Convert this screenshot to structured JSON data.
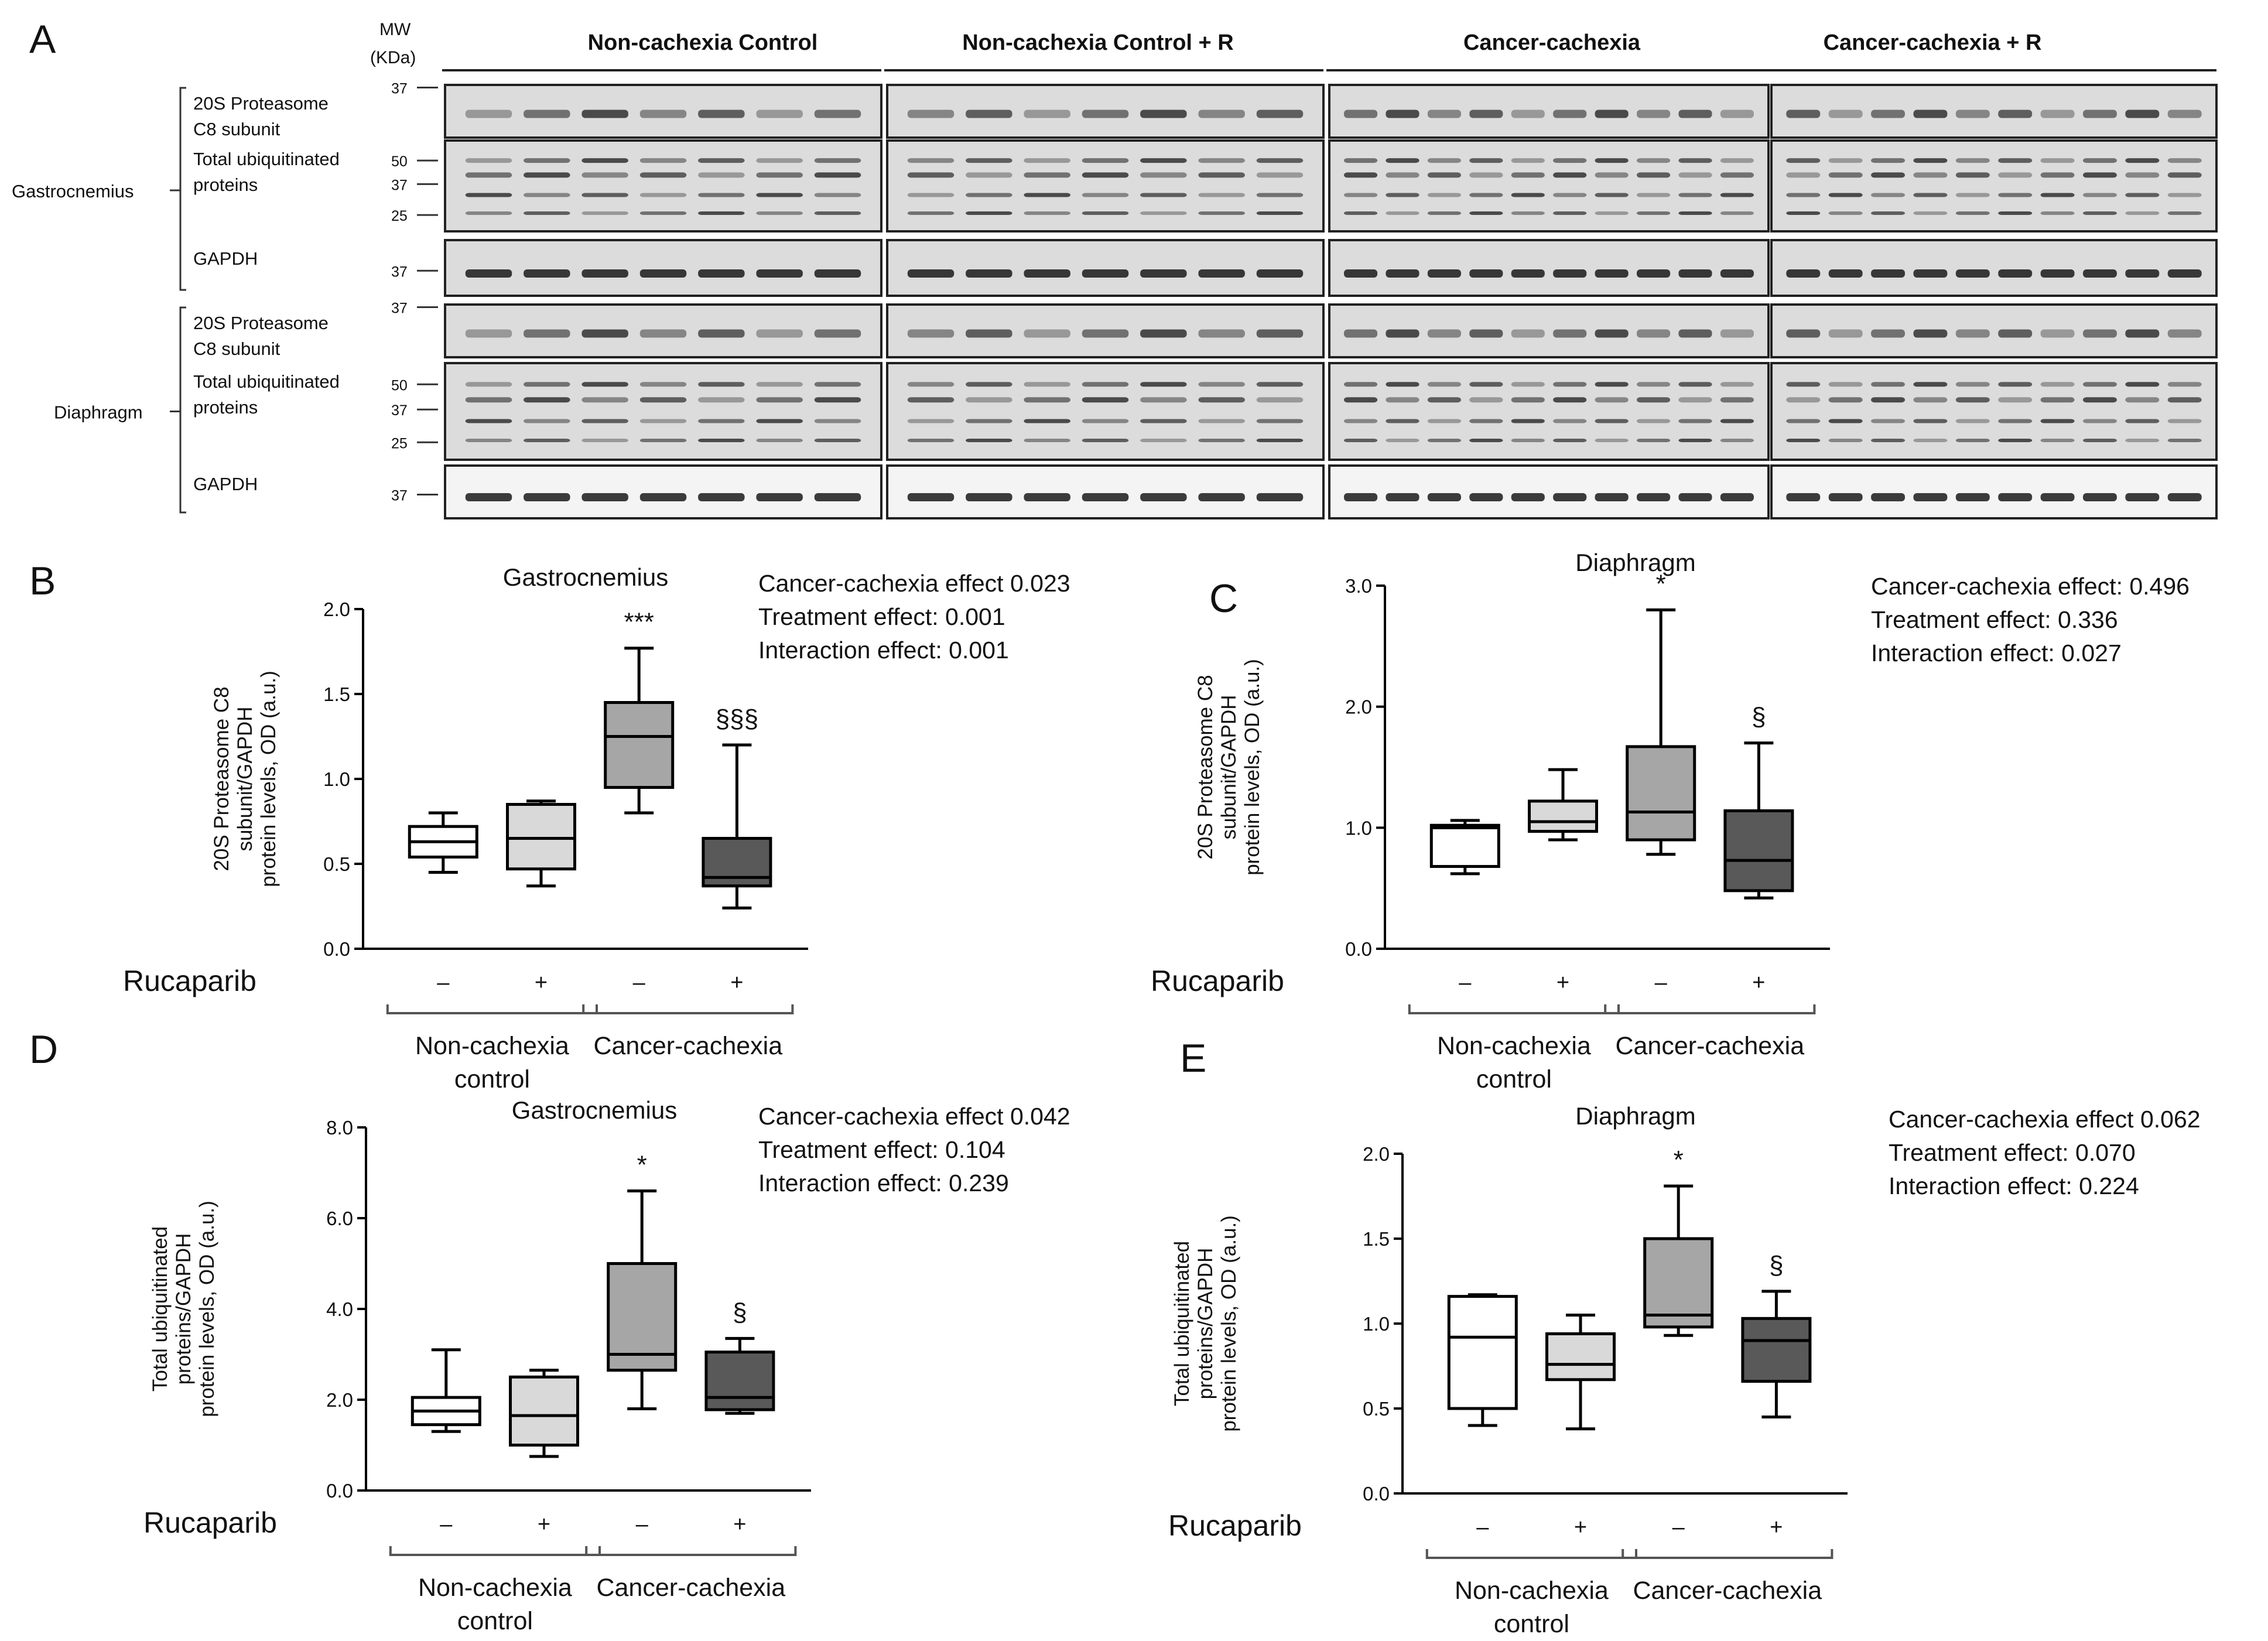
{
  "panel_letters": [
    "A",
    "B",
    "C",
    "D",
    "E"
  ],
  "blot": {
    "mw_header": [
      "MW",
      "(KDa)"
    ],
    "groups": [
      "Non-cachexia Control",
      "Non-cachexia Control + R",
      "Cancer-cachexia",
      "Cancer-cachexia + R"
    ],
    "tissues": [
      "Gastrocnemius",
      "Diaphragm"
    ],
    "rows": [
      {
        "label": [
          "20S Proteasome",
          "C8 subunit"
        ],
        "markers": [
          "37"
        ]
      },
      {
        "label": [
          "Total ubiquitinated",
          "proteins"
        ],
        "markers": [
          "50",
          "37",
          "25"
        ]
      },
      {
        "label": [
          "GAPDH"
        ],
        "markers": [
          "37"
        ]
      }
    ]
  },
  "colors": {
    "box_fills": [
      "#ffffff",
      "#d9d9d9",
      "#a6a6a6",
      "#595959"
    ],
    "stroke": "#000000",
    "blot_bg": "#dcdcdc"
  },
  "chart_data": [
    {
      "panel": "B",
      "type": "box",
      "title": "Gastrocnemius",
      "ylabel": [
        "20S Proteasome C8",
        "subunit/GAPDH",
        "protein levels, OD (a.u.)"
      ],
      "ylim": [
        0,
        2.0
      ],
      "yticks": [
        "0.0",
        "0.5",
        "1.0",
        "1.5",
        "2.0"
      ],
      "rucaparib_label": "Rucaparib",
      "treatment": [
        "–",
        "+",
        "–",
        "+"
      ],
      "groups": [
        [
          "Non-cachexia",
          "control"
        ],
        [
          "Cancer-cachexia"
        ]
      ],
      "boxes": [
        {
          "min": 0.45,
          "q1": 0.54,
          "median": 0.63,
          "q3": 0.72,
          "max": 0.8,
          "sig": ""
        },
        {
          "min": 0.37,
          "q1": 0.47,
          "median": 0.65,
          "q3": 0.85,
          "max": 0.87,
          "sig": ""
        },
        {
          "min": 0.8,
          "q1": 0.95,
          "median": 1.25,
          "q3": 1.45,
          "max": 1.77,
          "sig": "***"
        },
        {
          "min": 0.24,
          "q1": 0.37,
          "median": 0.42,
          "q3": 0.65,
          "max": 1.2,
          "sig": "§§§"
        }
      ],
      "stats": [
        "Cancer-cachexia effect 0.023",
        "Treatment effect:  0.001",
        "Interaction effect:  0.001"
      ]
    },
    {
      "panel": "C",
      "type": "box",
      "title": "Diaphragm",
      "ylabel": [
        "20S Proteasome C8",
        "subunit/GAPDH",
        "protein levels, OD (a.u.)"
      ],
      "ylim": [
        0,
        3.0
      ],
      "yticks": [
        "0.0",
        "1.0",
        "2.0",
        "3.0"
      ],
      "rucaparib_label": "Rucaparib",
      "treatment": [
        "–",
        "+",
        "–",
        "+"
      ],
      "groups": [
        [
          "Non-cachexia",
          "control"
        ],
        [
          "Cancer-cachexia"
        ]
      ],
      "boxes": [
        {
          "min": 0.62,
          "q1": 0.68,
          "median": 1.0,
          "q3": 1.02,
          "max": 1.06,
          "sig": ""
        },
        {
          "min": 0.9,
          "q1": 0.97,
          "median": 1.05,
          "q3": 1.22,
          "max": 1.48,
          "sig": ""
        },
        {
          "min": 0.78,
          "q1": 0.9,
          "median": 1.13,
          "q3": 1.67,
          "max": 2.8,
          "sig": "*"
        },
        {
          "min": 0.42,
          "q1": 0.48,
          "median": 0.73,
          "q3": 1.14,
          "max": 1.7,
          "sig": "§"
        }
      ],
      "stats": [
        "Cancer-cachexia effect: 0.496",
        "Treatment effect: 0.336",
        "Interaction effect: 0.027"
      ]
    },
    {
      "panel": "D",
      "type": "box",
      "title": "Gastrocnemius",
      "ylabel": [
        "Total ubiquitinated",
        "proteins/GAPDH",
        "protein levels, OD (a.u.)"
      ],
      "ylim": [
        0,
        8.0
      ],
      "yticks": [
        "0.0",
        "2.0",
        "4.0",
        "6.0",
        "8.0"
      ],
      "rucaparib_label": "Rucaparib",
      "treatment": [
        "–",
        "+",
        "–",
        "+"
      ],
      "groups": [
        [
          "Non-cachexia",
          "control"
        ],
        [
          "Cancer-cachexia"
        ]
      ],
      "boxes": [
        {
          "min": 1.3,
          "q1": 1.45,
          "median": 1.75,
          "q3": 2.05,
          "max": 3.1,
          "sig": ""
        },
        {
          "min": 0.75,
          "q1": 1.0,
          "median": 1.65,
          "q3": 2.5,
          "max": 2.65,
          "sig": ""
        },
        {
          "min": 1.8,
          "q1": 2.65,
          "median": 3.0,
          "q3": 5.0,
          "max": 6.6,
          "sig": "*"
        },
        {
          "min": 1.7,
          "q1": 1.78,
          "median": 2.05,
          "q3": 3.05,
          "max": 3.35,
          "sig": "§"
        }
      ],
      "stats": [
        "Cancer-cachexia effect 0.042",
        "Treatment effect:  0.104",
        "Interaction effect: 0.239"
      ]
    },
    {
      "panel": "E",
      "type": "box",
      "title": "Diaphragm",
      "ylabel": [
        "Total ubiquitinated",
        "proteins/GAPDH",
        "protein levels, OD (a.u.)"
      ],
      "ylim": [
        0,
        2.0
      ],
      "yticks": [
        "0.0",
        "0.5",
        "1.0",
        "1.5",
        "2.0"
      ],
      "rucaparib_label": "Rucaparib",
      "treatment": [
        "–",
        "+",
        "–",
        "+"
      ],
      "groups": [
        [
          "Non-cachexia",
          "control"
        ],
        [
          "Cancer-cachexia"
        ]
      ],
      "boxes": [
        {
          "min": 0.4,
          "q1": 0.5,
          "median": 0.92,
          "q3": 1.16,
          "max": 1.17,
          "sig": ""
        },
        {
          "min": 0.38,
          "q1": 0.67,
          "median": 0.76,
          "q3": 0.94,
          "max": 1.05,
          "sig": ""
        },
        {
          "min": 0.93,
          "q1": 0.98,
          "median": 1.05,
          "q3": 1.5,
          "max": 1.81,
          "sig": "*"
        },
        {
          "min": 0.45,
          "q1": 0.66,
          "median": 0.9,
          "q3": 1.03,
          "max": 1.19,
          "sig": "§"
        }
      ],
      "stats": [
        "Cancer-cachexia effect 0.062",
        "Treatment effect:  0.070",
        "Interaction effect: 0.224"
      ]
    }
  ]
}
